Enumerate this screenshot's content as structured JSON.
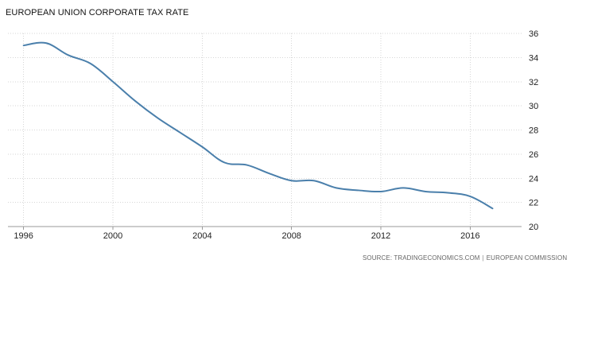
{
  "chart_data": {
    "type": "line",
    "title": "EUROPEAN UNION CORPORATE TAX RATE",
    "xlabel": "",
    "ylabel": "",
    "x": [
      1996,
      1997,
      1998,
      1999,
      2000,
      2001,
      2002,
      2003,
      2004,
      2005,
      2006,
      2007,
      2008,
      2009,
      2010,
      2011,
      2012,
      2013,
      2014,
      2015,
      2016,
      2017
    ],
    "series": [
      {
        "name": "",
        "values": [
          35.0,
          35.2,
          34.2,
          33.5,
          32.0,
          30.4,
          29.0,
          27.8,
          26.6,
          25.3,
          25.1,
          24.4,
          23.8,
          23.8,
          23.2,
          23.0,
          22.9,
          23.2,
          22.9,
          22.8,
          22.5,
          21.5
        ]
      }
    ],
    "xlim": [
      1995.3,
      2018.3
    ],
    "ylim": [
      20,
      36
    ],
    "xticks": [
      "1996",
      "2000",
      "2004",
      "2008",
      "2012",
      "2016"
    ],
    "yticks": [
      "36",
      "34",
      "32",
      "30",
      "28",
      "26",
      "24",
      "22",
      "20"
    ],
    "grid": true,
    "legend": "none",
    "line_color": "#4a7fab",
    "source": {
      "label": "SOURCE: TRADINGECONOMICS.COM",
      "separator": "|",
      "provider": "EUROPEAN COMMISSION"
    }
  }
}
